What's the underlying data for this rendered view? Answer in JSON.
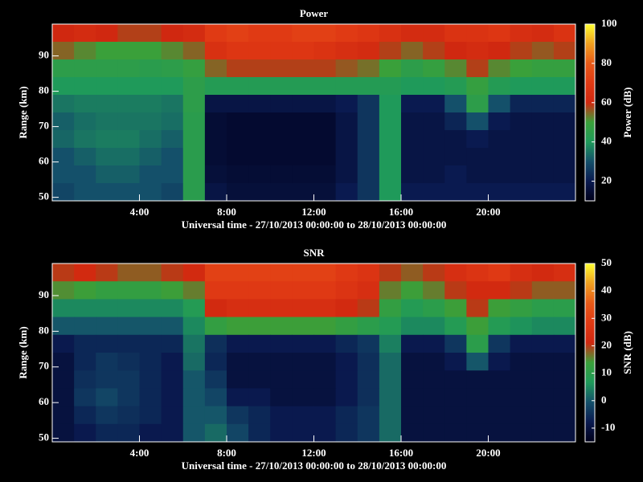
{
  "chart_data": [
    {
      "type": "heatmap",
      "title": "Power",
      "xlabel": "Universal time - 27/10/2013 00:00:00 to 28/10/2013 00:00:00",
      "ylabel": "Range (km)",
      "colorbar_label": "Power (dB)",
      "x": [
        0.5,
        1.5,
        2.5,
        3.5,
        4.5,
        5.5,
        6.5,
        7.5,
        8.5,
        9.5,
        10.5,
        11.5,
        12.5,
        13.5,
        14.5,
        15.5,
        16.5,
        17.5,
        18.5,
        19.5,
        20.5,
        21.5,
        22.5,
        23.5
      ],
      "y": [
        96.5,
        91.5,
        86.5,
        81.5,
        76.5,
        71.5,
        66.5,
        61.5,
        56.5,
        51.5
      ],
      "z": [
        [
          60,
          62,
          60,
          58,
          58,
          60,
          62,
          70,
          72,
          70,
          70,
          72,
          72,
          70,
          68,
          65,
          62,
          62,
          66,
          66,
          68,
          64,
          62,
          66
        ],
        [
          55,
          52,
          50,
          50,
          50,
          52,
          55,
          65,
          68,
          68,
          68,
          68,
          66,
          64,
          62,
          58,
          55,
          58,
          60,
          62,
          60,
          58,
          56,
          58
        ],
        [
          45,
          45,
          45,
          45,
          44,
          45,
          48,
          55,
          58,
          58,
          58,
          58,
          58,
          56,
          54,
          50,
          45,
          48,
          52,
          58,
          52,
          50,
          48,
          48
        ],
        [
          40,
          40,
          40,
          40,
          40,
          40,
          45,
          42,
          42,
          42,
          42,
          42,
          42,
          42,
          42,
          42,
          40,
          40,
          42,
          48,
          42,
          40,
          40,
          40
        ],
        [
          35,
          36,
          36,
          36,
          36,
          35,
          45,
          18,
          18,
          18,
          18,
          18,
          18,
          20,
          25,
          40,
          20,
          20,
          30,
          45,
          30,
          22,
          22,
          22
        ],
        [
          32,
          34,
          35,
          35,
          35,
          34,
          44,
          15,
          14,
          14,
          14,
          14,
          14,
          18,
          25,
          40,
          18,
          18,
          22,
          30,
          20,
          18,
          18,
          18
        ],
        [
          33,
          35,
          36,
          36,
          34,
          32,
          44,
          15,
          14,
          14,
          14,
          14,
          14,
          18,
          25,
          40,
          18,
          18,
          18,
          20,
          18,
          18,
          18,
          18
        ],
        [
          30,
          32,
          34,
          34,
          32,
          30,
          44,
          15,
          14,
          14,
          14,
          14,
          14,
          18,
          25,
          40,
          18,
          18,
          18,
          18,
          18,
          18,
          18,
          18
        ],
        [
          30,
          30,
          32,
          32,
          30,
          30,
          44,
          16,
          15,
          15,
          15,
          15,
          15,
          18,
          25,
          40,
          18,
          18,
          20,
          18,
          18,
          18,
          18,
          18
        ],
        [
          28,
          30,
          30,
          30,
          30,
          28,
          44,
          18,
          16,
          16,
          16,
          16,
          16,
          20,
          25,
          40,
          20,
          20,
          20,
          20,
          20,
          20,
          20,
          20
        ]
      ],
      "xlim": [
        0,
        24
      ],
      "xticks": [
        {
          "value": 4,
          "label": "4:00"
        },
        {
          "value": 8,
          "label": "8:00"
        },
        {
          "value": 12,
          "label": "12:00"
        },
        {
          "value": 16,
          "label": "16:00"
        },
        {
          "value": 20,
          "label": "20:00"
        }
      ],
      "ylim": [
        49,
        99
      ],
      "yticks": [
        50,
        60,
        70,
        80,
        90
      ],
      "zlim": [
        10,
        100
      ],
      "zticks": [
        20,
        40,
        60,
        80,
        100
      ],
      "colormap": [
        "#00001a",
        "#0a1a50",
        "#14506a",
        "#1f9a5a",
        "#3aa03a",
        "#d02810",
        "#e03a14",
        "#e85a18",
        "#f0a020",
        "#ffff30"
      ]
    },
    {
      "type": "heatmap",
      "title": "SNR",
      "xlabel": "Universal time - 27/10/2013 00:00:00 to 28/10/2013 00:00:00",
      "ylabel": "Range (km)",
      "colorbar_label": "SNR (dB)",
      "x": [
        0.5,
        1.5,
        2.5,
        3.5,
        4.5,
        5.5,
        6.5,
        7.5,
        8.5,
        9.5,
        10.5,
        11.5,
        12.5,
        13.5,
        14.5,
        15.5,
        16.5,
        17.5,
        18.5,
        19.5,
        20.5,
        21.5,
        22.5,
        23.5
      ],
      "y": [
        96.5,
        91.5,
        86.5,
        81.5,
        76.5,
        71.5,
        66.5,
        61.5,
        56.5,
        51.5
      ],
      "z": [
        [
          20,
          22,
          20,
          18,
          18,
          20,
          22,
          30,
          30,
          30,
          30,
          30,
          30,
          28,
          26,
          20,
          18,
          20,
          24,
          26,
          28,
          24,
          22,
          24
        ],
        [
          15,
          14,
          12,
          12,
          12,
          14,
          16,
          28,
          28,
          28,
          28,
          28,
          28,
          26,
          24,
          16,
          14,
          16,
          20,
          22,
          22,
          20,
          18,
          18
        ],
        [
          5,
          5,
          5,
          5,
          5,
          5,
          8,
          22,
          24,
          24,
          24,
          24,
          24,
          22,
          20,
          12,
          8,
          10,
          14,
          20,
          14,
          12,
          10,
          10
        ],
        [
          0,
          0,
          0,
          0,
          0,
          0,
          5,
          12,
          14,
          14,
          14,
          14,
          14,
          12,
          10,
          8,
          5,
          5,
          8,
          14,
          8,
          6,
          5,
          5
        ],
        [
          -8,
          -6,
          -6,
          -6,
          -6,
          -6,
          3,
          -5,
          -8,
          -8,
          -8,
          -8,
          -8,
          -6,
          -4,
          4,
          -8,
          -8,
          -4,
          10,
          -4,
          -8,
          -8,
          -8
        ],
        [
          -10,
          -6,
          -4,
          -5,
          -6,
          -8,
          2,
          -6,
          -10,
          -10,
          -10,
          -10,
          -10,
          -8,
          -5,
          2,
          -10,
          -10,
          -8,
          0,
          -8,
          -10,
          -10,
          -10
        ],
        [
          -10,
          -5,
          -4,
          -4,
          -6,
          -8,
          0,
          -4,
          -10,
          -10,
          -10,
          -10,
          -10,
          -8,
          -5,
          2,
          -10,
          -10,
          -10,
          -10,
          -10,
          -10,
          -10,
          -10
        ],
        [
          -10,
          -4,
          -2,
          -4,
          -6,
          -8,
          0,
          -2,
          -8,
          -8,
          -10,
          -10,
          -10,
          -8,
          -5,
          2,
          -10,
          -10,
          -10,
          -10,
          -10,
          -10,
          -10,
          -10
        ],
        [
          -10,
          -6,
          -4,
          -5,
          -6,
          -8,
          0,
          0,
          -4,
          -6,
          -8,
          -8,
          -8,
          -6,
          -4,
          2,
          -10,
          -10,
          -10,
          -10,
          -10,
          -10,
          -10,
          -10
        ],
        [
          -10,
          -8,
          -6,
          -6,
          -8,
          -8,
          0,
          2,
          -2,
          -6,
          -8,
          -8,
          -8,
          -6,
          -4,
          2,
          -10,
          -10,
          -10,
          -10,
          -10,
          -10,
          -10,
          -10
        ]
      ],
      "xlim": [
        0,
        24
      ],
      "xticks": [
        {
          "value": 4,
          "label": "4:00"
        },
        {
          "value": 8,
          "label": "8:00"
        },
        {
          "value": 12,
          "label": "12:00"
        },
        {
          "value": 16,
          "label": "16:00"
        },
        {
          "value": 20,
          "label": "20:00"
        }
      ],
      "ylim": [
        49,
        99
      ],
      "yticks": [
        50,
        60,
        70,
        80,
        90
      ],
      "zlim": [
        -15,
        50
      ],
      "zticks": [
        -10,
        0,
        10,
        20,
        30,
        40,
        50
      ],
      "colormap": [
        "#00001a",
        "#0a1a50",
        "#14506a",
        "#1f9a5a",
        "#3aa03a",
        "#d02810",
        "#e03a14",
        "#e85a18",
        "#f0a020",
        "#ffff30"
      ]
    }
  ]
}
